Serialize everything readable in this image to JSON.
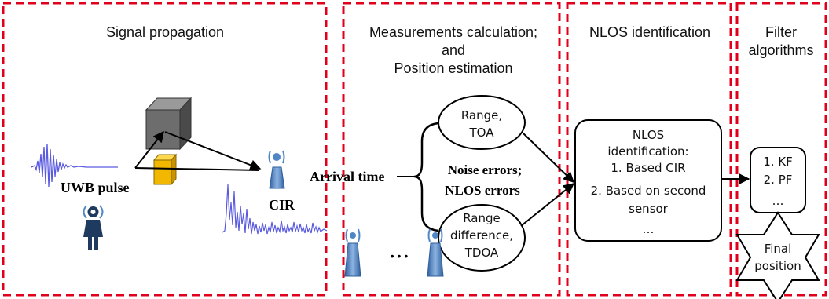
{
  "panels": {
    "signal": {
      "title": "Signal propagation"
    },
    "measure": {
      "title_line1": "Measurements calculation;",
      "title_line2": "and",
      "title_line3": "Position estimation"
    },
    "nlos": {
      "title": "NLOS identification"
    },
    "filter": {
      "title_line1": "Filter",
      "title_line2": "algorithms"
    }
  },
  "labels": {
    "uwb_pulse": "UWB pulse",
    "cir": "CIR",
    "arrival_time": "Arrival time",
    "noise_errors": "Noise errors;",
    "nlos_errors": "NLOS errors",
    "ellipsis_dots": "• • •"
  },
  "ellipses": {
    "range_toa": {
      "line1": "Range,",
      "line2": "TOA"
    },
    "range_tdoa": {
      "line1": "Range",
      "line2": "difference,",
      "line3": "TDOA"
    }
  },
  "nlos_box": {
    "line1": "NLOS",
    "line2": "identification:",
    "line3": "1. Based CIR",
    "line4": "2. Based on second",
    "line5": "sensor",
    "line6": "…"
  },
  "filter_box": {
    "line1": "1. KF",
    "line2": "2. PF",
    "line3": "…"
  },
  "final_star": {
    "line1": "Final",
    "line2": "position"
  },
  "colors": {
    "panel_border": "#e0001b",
    "cube_gray": "#6d6d6d",
    "obstacle_yellow": "#f2b800",
    "antenna_blue": "#4f86c6",
    "signal_blue": "#5a5ae0",
    "person_navy": "#1f3a5f"
  }
}
